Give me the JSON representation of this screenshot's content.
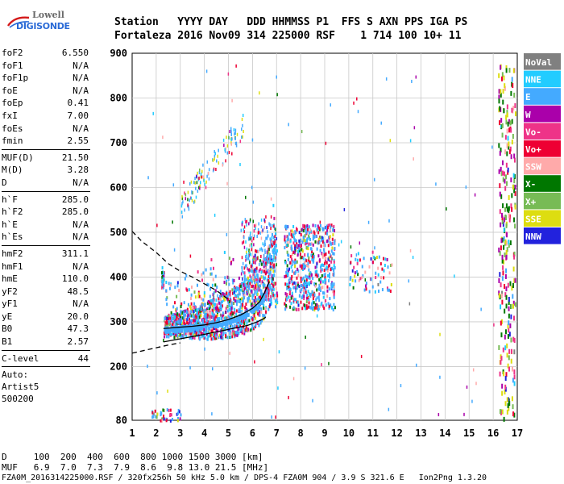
{
  "logo": {
    "line1": "Lowell",
    "line2": "DIGISONDE"
  },
  "header": {
    "line1": "Station   YYYY DAY   DDD HHMMSS P1  FFS S AXN PPS IGA PS",
    "line2": "Fortaleza 2016 Nov09 314 225000 RSF    1 714 100 10+ 11"
  },
  "params_group1": [
    {
      "k": "foF2",
      "v": "6.550"
    },
    {
      "k": "foF1",
      "v": "N/A"
    },
    {
      "k": "foF1p",
      "v": "N/A"
    },
    {
      "k": "foE",
      "v": "N/A"
    },
    {
      "k": "foEp",
      "v": "0.41"
    },
    {
      "k": "fxI",
      "v": "7.00"
    },
    {
      "k": "foEs",
      "v": "N/A"
    },
    {
      "k": "fmin",
      "v": "2.55"
    }
  ],
  "params_group2": [
    {
      "k": "MUF(D)",
      "v": "21.50"
    },
    {
      "k": "M(D)",
      "v": "3.28"
    },
    {
      "k": "D",
      "v": "N/A"
    }
  ],
  "params_group3": [
    {
      "k": "h`F",
      "v": "285.0"
    },
    {
      "k": "h`F2",
      "v": "285.0"
    },
    {
      "k": "h`E",
      "v": "N/A"
    },
    {
      "k": "h`Es",
      "v": "N/A"
    }
  ],
  "params_group4": [
    {
      "k": "hmF2",
      "v": "311.1"
    },
    {
      "k": "hmF1",
      "v": "N/A"
    },
    {
      "k": "hmE",
      "v": "110.0"
    },
    {
      "k": "yF2",
      "v": "48.5"
    },
    {
      "k": "yF1",
      "v": "N/A"
    },
    {
      "k": "yE",
      "v": "20.0"
    },
    {
      "k": "B0",
      "v": "47.3"
    },
    {
      "k": "B1",
      "v": "2.57"
    }
  ],
  "params_group5": [
    {
      "k": "C-level",
      "v": "44"
    }
  ],
  "auto": {
    "line1": "Auto:",
    "line2": "Artist5",
    "line3": "500200"
  },
  "bottom": {
    "d_row": "D     100  200  400  600  800 1000 1500 3000 [km]",
    "muf_row": "MUF   6.9  7.0  7.3  7.9  8.6  9.8 13.0 21.5 [MHz]",
    "footer": "FZA0M_2016314225000.RSF / 320fx256h 50 kHz 5.0 km / DPS-4 FZA0M 904 / 3.9 S 321.6 E   Ion2Png 1.3.20"
  },
  "chart_data": {
    "type": "scatter",
    "title": "",
    "xlabel": "",
    "ylabel": "",
    "xlim": [
      1,
      17
    ],
    "ylim": [
      80,
      900
    ],
    "x_ticks": [
      1,
      2,
      3,
      4,
      5,
      6,
      7,
      8,
      9,
      10,
      11,
      12,
      13,
      14,
      15,
      16,
      17
    ],
    "y_ticks": [
      80,
      200,
      300,
      400,
      500,
      600,
      700,
      800,
      900
    ],
    "grid": true,
    "legend_position": "right",
    "legend": [
      {
        "name": "NoVal",
        "color": "#808080"
      },
      {
        "name": "NNE",
        "color": "#22ccff"
      },
      {
        "name": "E",
        "color": "#44aaff"
      },
      {
        "name": "W",
        "color": "#aa00aa"
      },
      {
        "name": "Vo-",
        "color": "#ee3388"
      },
      {
        "name": "Vo+",
        "color": "#ee0033"
      },
      {
        "name": "SSW",
        "color": "#ffaaaa"
      },
      {
        "name": "X-",
        "color": "#007700"
      },
      {
        "name": "X+",
        "color": "#77bb55"
      },
      {
        "name": "SSE",
        "color": "#dddd11"
      },
      {
        "name": "NNW",
        "color": "#2222dd"
      }
    ],
    "profile_solid": {
      "x": [
        2.3,
        3.0,
        4.0,
        5.0,
        5.8,
        6.2,
        6.5,
        6.55
      ],
      "y": [
        255,
        262,
        272,
        283,
        292,
        300,
        308,
        311
      ]
    },
    "profile_dashed_upper": {
      "x": [
        1.0,
        1.4,
        2.0,
        2.5,
        3.0,
        3.5,
        4.0,
        4.5,
        5.0
      ],
      "y": [
        502,
        480,
        455,
        430,
        413,
        400,
        385,
        370,
        350
      ]
    },
    "profile_dashed_lower": {
      "x": [
        1.0,
        1.5,
        2.0,
        2.5,
        3.0
      ],
      "y": [
        230,
        236,
        242,
        248,
        253
      ]
    },
    "trace_curve": {
      "x": [
        2.3,
        3.0,
        3.5,
        4.0,
        4.5,
        5.0,
        5.5,
        6.0,
        6.3,
        6.5,
        6.7
      ],
      "y": [
        285,
        288,
        290,
        293,
        298,
        305,
        315,
        330,
        345,
        365,
        390
      ]
    },
    "echo_regions": [
      {
        "x": [
          2.0,
          7.0
        ],
        "y": [
          280,
          460
        ],
        "density": "high"
      },
      {
        "x": [
          7.5,
          9.5
        ],
        "y": [
          330,
          520
        ],
        "density": "medium"
      },
      {
        "x": [
          3.0,
          5.5
        ],
        "y": [
          560,
          780
        ],
        "density": "low"
      },
      {
        "x": [
          10.0,
          11.8
        ],
        "y": [
          370,
          460
        ],
        "density": "low"
      },
      {
        "x": [
          16.0,
          17.0
        ],
        "y": [
          80,
          890
        ],
        "density": "medium"
      }
    ]
  }
}
